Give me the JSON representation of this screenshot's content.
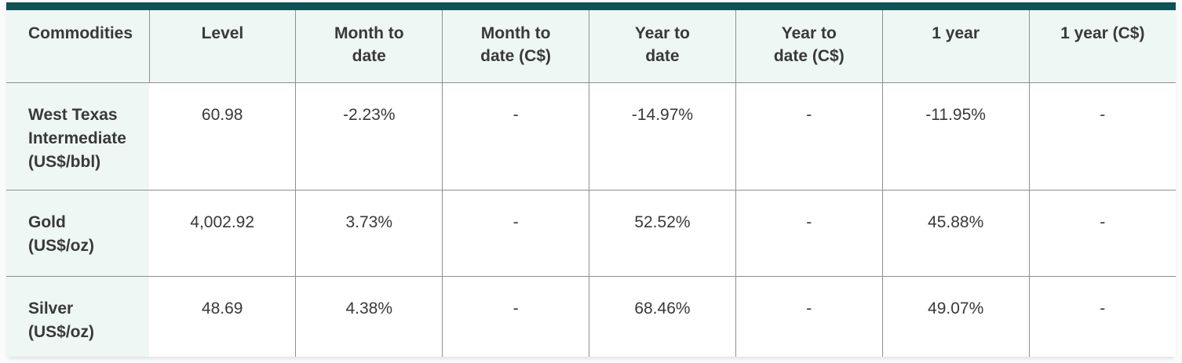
{
  "colors": {
    "accent_bar": "#0d5257",
    "header_bg": "#eff7f5",
    "grid_line": "#8f8f8f",
    "cell_bg": "#ffffff",
    "text": "#393939",
    "page_bg": "#fbfbfb"
  },
  "table": {
    "columns": [
      "Commodities",
      "Level",
      "Month to\ndate",
      "Month to\ndate (C$)",
      "Year to\ndate",
      "Year to\ndate (C$)",
      "1 year",
      "1 year (C$)"
    ],
    "rows": [
      {
        "label": "West Texas\nIntermediate\n(US$/bbl)",
        "values": [
          "60.98",
          "-2.23%",
          "-",
          "-14.97%",
          "-",
          "-11.95%",
          "-"
        ]
      },
      {
        "label": "Gold\n(US$/oz)",
        "values": [
          "4,002.92",
          "3.73%",
          "-",
          "52.52%",
          "-",
          "45.88%",
          "-"
        ]
      },
      {
        "label": "Silver\n(US$/oz)",
        "values": [
          "48.69",
          "4.38%",
          "-",
          "68.46%",
          "-",
          "49.07%",
          "-"
        ]
      }
    ]
  }
}
